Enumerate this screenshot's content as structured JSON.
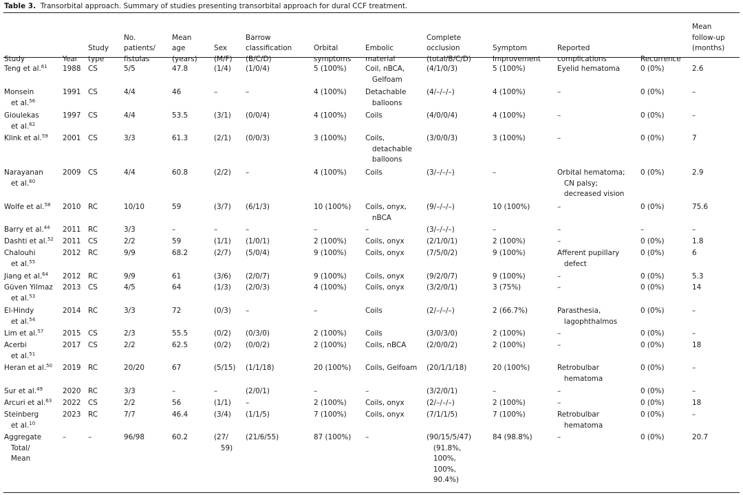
{
  "caption": {
    "label": "Table 3.",
    "text": "Transorbital approach. Summary of studies presenting transorbital approach for dural CCF treatment."
  },
  "columns": [
    {
      "key": "study",
      "label": "\n\n\nStudy"
    },
    {
      "key": "year",
      "label": "\n\n\nYear"
    },
    {
      "key": "type",
      "label": "\n\nStudy\ntype"
    },
    {
      "key": "n",
      "label": "\nNo.\npatients/\nfistulas"
    },
    {
      "key": "age",
      "label": "\nMean\nage\n(years)"
    },
    {
      "key": "sex",
      "label": "\n\nSex\n(M/F)"
    },
    {
      "key": "barrow",
      "label": "\nBarrow\nclassification\n(B/C/D)"
    },
    {
      "key": "orbital",
      "label": "\n\nOrbital\nsymptoms"
    },
    {
      "key": "embolic",
      "label": "\n\nEmbolic\nmaterial"
    },
    {
      "key": "occlusion",
      "label": "\nComplete\nocclusion\n(total/B/C/D)"
    },
    {
      "key": "symptom",
      "label": "\n\nSymptom\nImprovement"
    },
    {
      "key": "complications",
      "label": "\n\nReported\ncomplications"
    },
    {
      "key": "recurrence",
      "label": "\n\n\nRecurrence"
    },
    {
      "key": "followup",
      "label": "Mean\nfollow-up\n(months)"
    }
  ],
  "rows": [
    {
      "study": "Teng et al.",
      "ref": "61",
      "year": "1988",
      "type": "CS",
      "n": "5/5",
      "age": "47.8",
      "sex": "(1/4)",
      "barrow": "(1/0/4)",
      "orbital": "5 (100%)",
      "embolic": "Coil, nBCA,\n   Gelfoam",
      "occlusion": "(4/1/0/3)",
      "symptom": "5 (100%)",
      "complications": "Eyelid hematoma",
      "recurrence": "0 (0%)",
      "followup": "2.6"
    },
    {
      "study": "Monsein\n   et al.",
      "ref": "56",
      "year": "1991",
      "type": "CS",
      "n": "4/4",
      "age": "46",
      "sex": "–",
      "barrow": "–",
      "orbital": "4 (100%)",
      "embolic": "Detachable\n   balloons",
      "occlusion": "(4/–/–/–)",
      "symptom": "4 (100%)",
      "complications": "–",
      "recurrence": "0 (0%)",
      "followup": "–"
    },
    {
      "study": "Gioulekas\n   et al.",
      "ref": "62",
      "year": "1997",
      "type": "CS",
      "n": "4/4",
      "age": "53.5",
      "sex": "(3/1)",
      "barrow": "(0/0/4)",
      "orbital": "4 (100%)",
      "embolic": "Coils",
      "occlusion": "(4/0/0/4)",
      "symptom": "4 (100%)",
      "complications": "–",
      "recurrence": "0 (0%)",
      "followup": "–"
    },
    {
      "study": "Klink et al.",
      "ref": "59",
      "year": "2001",
      "type": "CS",
      "n": "3/3",
      "age": "61.3",
      "sex": "(2/1)",
      "barrow": "(0/0/3)",
      "orbital": "3 (100%)",
      "embolic": "Coils,\n   detachable\n   balloons",
      "occlusion": "(3/0/0/3)",
      "symptom": "3 (100%)",
      "complications": "–",
      "recurrence": "0 (0%)",
      "followup": "7"
    },
    {
      "study": "Narayanan\n   et al.",
      "ref": "60",
      "year": "2009",
      "type": "CS",
      "n": "4/4",
      "age": "60.8",
      "sex": "(2/2)",
      "barrow": "–",
      "orbital": "4 (100%)",
      "embolic": "Coils",
      "occlusion": "(3/–/–/–)",
      "symptom": "–",
      "complications": "Orbital hematoma;\n   CN palsy;\n   decreased vision",
      "recurrence": "0 (0%)",
      "followup": "2.9"
    },
    {
      "study": "Wolfe et al.",
      "ref": "58",
      "year": "2010",
      "type": "RC",
      "n": "10/10",
      "age": "59",
      "sex": "(3/7)",
      "barrow": "(6/1/3)",
      "orbital": "10 (100%)",
      "embolic": "Coils, onyx,\n   nBCA",
      "occlusion": "(9/–/–/–)",
      "symptom": "10 (100%)",
      "complications": "–",
      "recurrence": "0 (0%)",
      "followup": "75.6"
    },
    {
      "study": "Barry et al.",
      "ref": "44",
      "year": "2011",
      "type": "RC",
      "n": "3/3",
      "age": "–",
      "sex": "–",
      "barrow": "–",
      "orbital": "–",
      "embolic": "–",
      "occlusion": "(3/–/–/–)",
      "symptom": "–",
      "complications": "–",
      "recurrence": "–",
      "followup": "–"
    },
    {
      "study": "Dashti et al.",
      "ref": "52",
      "year": "2011",
      "type": "CS",
      "n": "2/2",
      "age": "59",
      "sex": "(1/1)",
      "barrow": "(1/0/1)",
      "orbital": "2 (100%)",
      "embolic": "Coils, onyx",
      "occlusion": "(2/1/0/1)",
      "symptom": "2 (100%)",
      "complications": "–",
      "recurrence": "0 (0%)",
      "followup": "1.8"
    },
    {
      "study": "Chalouhi\n   et al.",
      "ref": "55",
      "year": "2012",
      "type": "RC",
      "n": "9/9",
      "age": "68.2",
      "sex": "(2/7)",
      "barrow": "(5/0/4)",
      "orbital": "9 (100%)",
      "embolic": "Coils, onyx",
      "occlusion": "(7/5/0/2)",
      "symptom": "9 (100%)",
      "complications": "Afferent pupillary\n   defect",
      "recurrence": "0 (0%)",
      "followup": "6"
    },
    {
      "study": "Jiang et al.",
      "ref": "64",
      "year": "2012",
      "type": "RC",
      "n": "9/9",
      "age": "61",
      "sex": "(3/6)",
      "barrow": "(2/0/7)",
      "orbital": "9 (100%)",
      "embolic": "Coils, onyx",
      "occlusion": "(9/2/0/7)",
      "symptom": "9 (100%)",
      "complications": "–",
      "recurrence": "0 (0%)",
      "followup": "5.3"
    },
    {
      "study": "Güven Yilmaz\n   et al.",
      "ref": "53",
      "year": "2013",
      "type": "CS",
      "n": "4/5",
      "age": "64",
      "sex": "(1/3)",
      "barrow": "(2/0/3)",
      "orbital": "4 (100%)",
      "embolic": "Coils, onyx",
      "occlusion": "(3/2/0/1)",
      "symptom": "3 (75%)",
      "complications": "–",
      "recurrence": "0 (0%)",
      "followup": "14"
    },
    {
      "study": "El-Hindy\n   et al.",
      "ref": "54",
      "year": "2014",
      "type": "RC",
      "n": "3/3",
      "age": "72",
      "sex": "(0/3)",
      "barrow": "–",
      "orbital": "–",
      "embolic": "Coils",
      "occlusion": "(2/–/–/–)",
      "symptom": "2 (66.7%)",
      "complications": "Parasthesia,\n   lagophthalmos",
      "recurrence": "0 (0%)",
      "followup": "–"
    },
    {
      "study": "Lim et al.",
      "ref": "57",
      "year": "2015",
      "type": "CS",
      "n": "2/3",
      "age": "55.5",
      "sex": "(0/2)",
      "barrow": "(0/3/0)",
      "orbital": "2 (100%)",
      "embolic": "Coils",
      "occlusion": "(3/0/3/0)",
      "symptom": "2 (100%)",
      "complications": "–",
      "recurrence": "0 (0%)",
      "followup": "–"
    },
    {
      "study": "Acerbi\n   et al.",
      "ref": "51",
      "year": "2017",
      "type": "CS",
      "n": "2/2",
      "age": "62.5",
      "sex": "(0/2)",
      "barrow": "(0/0/2)",
      "orbital": "2 (100%)",
      "embolic": "Coils, nBCA",
      "occlusion": "(2/0/0/2)",
      "symptom": "2 (100%)",
      "complications": "–",
      "recurrence": "0 (0%)",
      "followup": "18"
    },
    {
      "study": "Heran et al.",
      "ref": "50",
      "year": "2019",
      "type": "RC",
      "n": "20/20",
      "age": "67",
      "sex": "(5/15)",
      "barrow": "(1/1/18)",
      "orbital": "20 (100%)",
      "embolic": "Coils, Gelfoam",
      "occlusion": "(20/1/1/18)",
      "symptom": "20 (100%)",
      "complications": "Retrobulbar\n   hematoma",
      "recurrence": "0 (0%)",
      "followup": "–"
    },
    {
      "study": "Sur et al.",
      "ref": "49",
      "year": "2020",
      "type": "RC",
      "n": "3/3",
      "age": "–",
      "sex": "–",
      "barrow": "(2/0/1)",
      "orbital": "–",
      "embolic": "–",
      "occlusion": "(3/2/0/1)",
      "symptom": "–",
      "complications": "–",
      "recurrence": "0 (0%)",
      "followup": "–"
    },
    {
      "study": "Arcuri et al.",
      "ref": "63",
      "year": "2022",
      "type": "CS",
      "n": "2/2",
      "age": "56",
      "sex": "(1/1)",
      "barrow": "–",
      "orbital": "2 (100%)",
      "embolic": "Coils, onyx",
      "occlusion": "(2/–/–/–)",
      "symptom": "2 (100%)",
      "complications": "–",
      "recurrence": "0 (0%)",
      "followup": "18"
    },
    {
      "study": "Steinberg\n   et al.",
      "ref": "10",
      "year": "2023",
      "type": "RC",
      "n": "7/7",
      "age": "46.4",
      "sex": "(3/4)",
      "barrow": "(1/1/5)",
      "orbital": "7 (100%)",
      "embolic": "Coils, onyx",
      "occlusion": "(7/1/1/5)",
      "symptom": "7 (100%)",
      "complications": "Retrobulbar\n   hematoma",
      "recurrence": "0 (0%)",
      "followup": "–"
    },
    {
      "study": "Aggregate\n   Total/\n   Mean",
      "ref": "",
      "year": "–",
      "type": "–",
      "n": "96/98",
      "age": "60.2",
      "sex": "(27/\n   59)",
      "barrow": "(21/6/55)",
      "orbital": "87 (100%)",
      "embolic": "–",
      "occlusion": "(90/15/5/47)\n   (91.8%,\n   100%,\n   100%,\n   90.4%)",
      "symptom": "84 (98.8%)",
      "complications": "–",
      "recurrence": "0 (0%)",
      "followup": "20.7"
    }
  ]
}
